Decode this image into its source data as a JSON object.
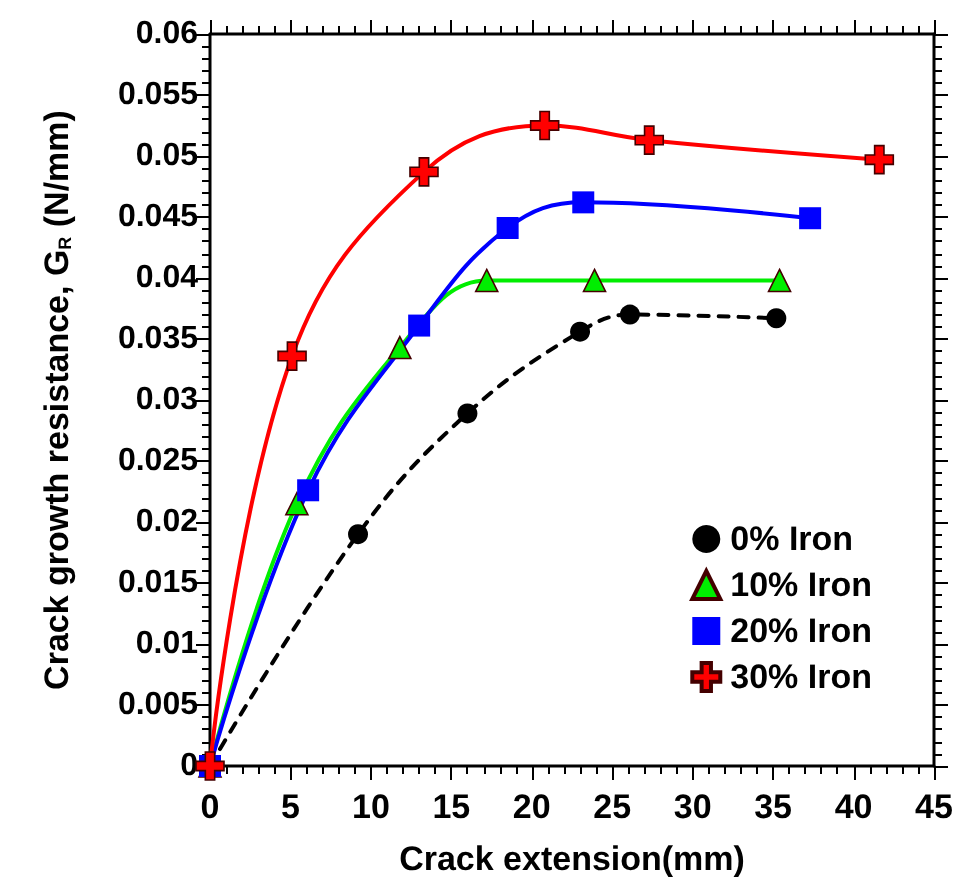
{
  "chart_data": {
    "type": "line",
    "xlabel": "Crack extension(mm)",
    "ylabel": "Crack growth resistance, G$_{R}$ (N/mm)",
    "xlim": [
      0,
      45
    ],
    "xticks": [
      0,
      5,
      10,
      15,
      20,
      25,
      30,
      35,
      40,
      45
    ],
    "ylim": [
      0,
      0.06
    ],
    "yticks": [
      0,
      0.005,
      0.01,
      0.015,
      0.02,
      0.025,
      0.03,
      0.035,
      0.04,
      0.045,
      0.05,
      0.055,
      0.06
    ],
    "legend": "bottom right",
    "grid": false,
    "series": [
      {
        "name": "0% Iron",
        "color": "#000000",
        "marker": "circle",
        "line_style": "dashed",
        "x": [
          0,
          9.2,
          16.0,
          23.0,
          26.1,
          35.2
        ],
        "values": [
          0,
          0.019,
          0.0289,
          0.0356,
          0.037,
          0.0367
        ]
      },
      {
        "name": "10% Iron",
        "color": "#00ee00",
        "marker": "triangle",
        "line_style": "solid",
        "x": [
          0,
          5.4,
          11.8,
          17.2,
          23.9,
          35.4
        ],
        "values": [
          0,
          0.0215,
          0.0343,
          0.0398,
          0.0398,
          0.0398
        ]
      },
      {
        "name": "20% Iron",
        "color": "#0000ff",
        "marker": "square",
        "line_style": "solid",
        "x": [
          0,
          6.1,
          13.0,
          18.5,
          23.2,
          37.3
        ],
        "values": [
          0,
          0.0226,
          0.0361,
          0.0441,
          0.0462,
          0.0449
        ]
      },
      {
        "name": "30% Iron",
        "color": "#ff0000",
        "marker": "cross",
        "line_style": "solid",
        "x": [
          0,
          5.1,
          13.3,
          20.8,
          27.3,
          41.6
        ],
        "values": [
          0,
          0.0336,
          0.0487,
          0.0525,
          0.0513,
          0.0497
        ]
      }
    ]
  }
}
